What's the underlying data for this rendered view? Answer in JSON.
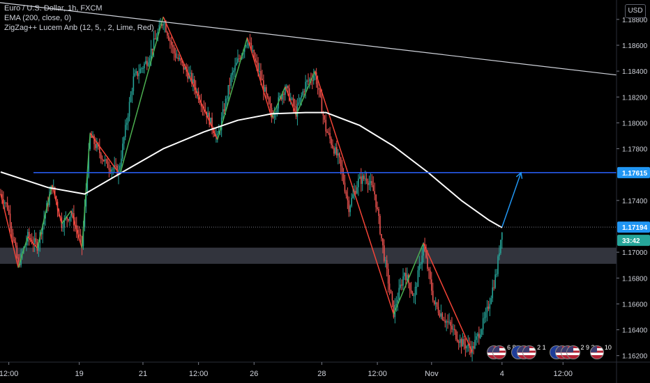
{
  "legend": {
    "symbol": "Euro / U.S. Dollar, 1h, FXCM",
    "ema": "EMA (200, close, 0)",
    "zigzag": "ZigZag++ Lucem Anb (12, 5, , 2, Lime, Red)"
  },
  "currency_button": "USD",
  "colors": {
    "background": "#000000",
    "bull": "#26a69a",
    "bear": "#ef5350",
    "zigzag_up": "#4caf50",
    "zigzag_down": "#f44336",
    "ema": "#ffffff",
    "trendline": "#d1d4dc",
    "level_line": "#2962ff",
    "price_label": "#2196f3",
    "countdown_label": "#26a69a",
    "zone": "#434651"
  },
  "chart_data": {
    "type": "candlestick",
    "y_axis": {
      "ticks": [
        "1.18800",
        "1.18600",
        "1.18400",
        "1.18200",
        "1.18000",
        "1.17800",
        "1.17400",
        "1.17000",
        "1.16800",
        "1.16600",
        "1.16400",
        "1.16200"
      ],
      "ylim": [
        1.1615,
        1.1895
      ]
    },
    "x_axis": {
      "ticks": [
        "12:00",
        "19",
        "21",
        "12:00",
        "26",
        "28",
        "12:00",
        "Nov",
        "4",
        "12:00"
      ],
      "tick_bar_index": [
        6,
        58,
        105,
        146,
        187,
        237,
        278,
        318,
        370,
        415
      ]
    },
    "bar_count": 455,
    "key_points": [
      {
        "i": 0,
        "y": 1.1745
      },
      {
        "i": 5,
        "y": 1.1735
      },
      {
        "i": 13,
        "y": 1.169
      },
      {
        "i": 20,
        "y": 1.1712
      },
      {
        "i": 27,
        "y": 1.1705
      },
      {
        "i": 38,
        "y": 1.1752
      },
      {
        "i": 45,
        "y": 1.1722
      },
      {
        "i": 52,
        "y": 1.173
      },
      {
        "i": 60,
        "y": 1.1705
      },
      {
        "i": 66,
        "y": 1.179
      },
      {
        "i": 78,
        "y": 1.1768
      },
      {
        "i": 87,
        "y": 1.1762
      },
      {
        "i": 98,
        "y": 1.1834
      },
      {
        "i": 108,
        "y": 1.1848
      },
      {
        "i": 120,
        "y": 1.188
      },
      {
        "i": 128,
        "y": 1.1854
      },
      {
        "i": 140,
        "y": 1.1835
      },
      {
        "i": 150,
        "y": 1.1812
      },
      {
        "i": 160,
        "y": 1.1788
      },
      {
        "i": 170,
        "y": 1.1835
      },
      {
        "i": 182,
        "y": 1.1865
      },
      {
        "i": 192,
        "y": 1.1835
      },
      {
        "i": 200,
        "y": 1.1805
      },
      {
        "i": 210,
        "y": 1.1828
      },
      {
        "i": 218,
        "y": 1.1808
      },
      {
        "i": 225,
        "y": 1.183
      },
      {
        "i": 232,
        "y": 1.1838
      },
      {
        "i": 240,
        "y": 1.1795
      },
      {
        "i": 250,
        "y": 1.177
      },
      {
        "i": 257,
        "y": 1.1735
      },
      {
        "i": 264,
        "y": 1.1755
      },
      {
        "i": 270,
        "y": 1.1758
      },
      {
        "i": 276,
        "y": 1.1745
      },
      {
        "i": 284,
        "y": 1.169
      },
      {
        "i": 290,
        "y": 1.1653
      },
      {
        "i": 298,
        "y": 1.1685
      },
      {
        "i": 305,
        "y": 1.1665
      },
      {
        "i": 312,
        "y": 1.1705
      },
      {
        "i": 320,
        "y": 1.166
      },
      {
        "i": 330,
        "y": 1.1645
      },
      {
        "i": 340,
        "y": 1.163
      },
      {
        "i": 348,
        "y": 1.1625
      },
      {
        "i": 358,
        "y": 1.165
      },
      {
        "i": 366,
        "y": 1.1685
      },
      {
        "i": 370,
        "y": 1.1719
      }
    ],
    "ema200": [
      {
        "i": 0,
        "y": 1.1762
      },
      {
        "i": 35,
        "y": 1.175
      },
      {
        "i": 62,
        "y": 1.1745
      },
      {
        "i": 90,
        "y": 1.1762
      },
      {
        "i": 120,
        "y": 1.178
      },
      {
        "i": 150,
        "y": 1.1793
      },
      {
        "i": 175,
        "y": 1.1802
      },
      {
        "i": 200,
        "y": 1.1807
      },
      {
        "i": 225,
        "y": 1.1808
      },
      {
        "i": 240,
        "y": 1.1808
      },
      {
        "i": 265,
        "y": 1.1798
      },
      {
        "i": 290,
        "y": 1.1782
      },
      {
        "i": 315,
        "y": 1.1762
      },
      {
        "i": 340,
        "y": 1.174
      },
      {
        "i": 360,
        "y": 1.1725
      },
      {
        "i": 370,
        "y": 1.1719
      }
    ],
    "zigzag": [
      {
        "i": 0,
        "y": 1.1745
      },
      {
        "i": 13,
        "y": 1.1688
      },
      {
        "i": 20,
        "y": 1.1712
      },
      {
        "i": 27,
        "y": 1.1703
      },
      {
        "i": 38,
        "y": 1.1752
      },
      {
        "i": 45,
        "y": 1.1722
      },
      {
        "i": 52,
        "y": 1.1732
      },
      {
        "i": 60,
        "y": 1.1703
      },
      {
        "i": 66,
        "y": 1.1792
      },
      {
        "i": 88,
        "y": 1.176
      },
      {
        "i": 120,
        "y": 1.1882
      },
      {
        "i": 160,
        "y": 1.1787
      },
      {
        "i": 182,
        "y": 1.1866
      },
      {
        "i": 200,
        "y": 1.1804
      },
      {
        "i": 210,
        "y": 1.1828
      },
      {
        "i": 218,
        "y": 1.1806
      },
      {
        "i": 232,
        "y": 1.184
      },
      {
        "i": 290,
        "y": 1.1652
      },
      {
        "i": 312,
        "y": 1.1707
      },
      {
        "i": 348,
        "y": 1.1623
      }
    ],
    "trendline": [
      {
        "i": 0,
        "y": 1.1893
      },
      {
        "i": 455,
        "y": 1.1837
      }
    ],
    "level_line": {
      "y": 1.17615
    },
    "zone": {
      "y_low": 1.1691,
      "y_high": 1.17035
    },
    "last_price_line": {
      "y": 1.17194
    },
    "projection_arrow": [
      {
        "i": 370,
        "y": 1.17194
      },
      {
        "i": 384,
        "y": 1.17615
      }
    ],
    "price_labels": {
      "level": "1.17615",
      "last": "1.17194",
      "countdown": "33:42"
    }
  },
  "events": [
    {
      "flags": [
        "us",
        "us"
      ],
      "count": "6 8",
      "bar": 364
    },
    {
      "flags": [
        "eu",
        "us",
        "us"
      ],
      "count": "2 1",
      "bar": 382
    },
    {
      "flags": [
        "eu",
        "us",
        "us",
        "us"
      ],
      "count": "2 9 2",
      "bar": 410
    },
    {
      "flags": [
        "us"
      ],
      "count": "10",
      "bar": 440
    }
  ]
}
